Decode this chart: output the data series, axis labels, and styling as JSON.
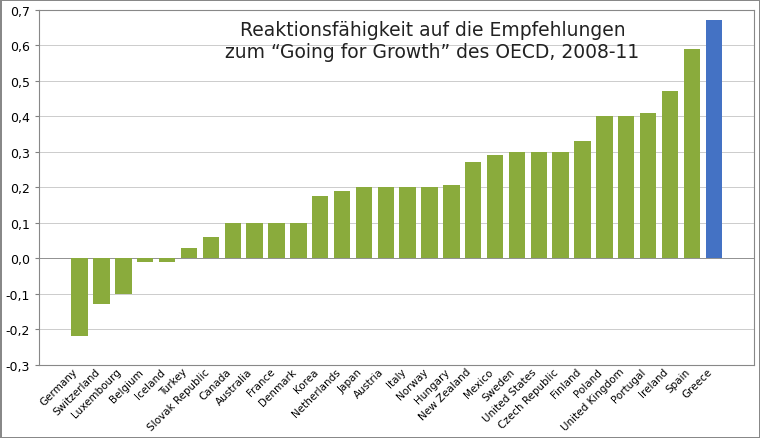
{
  "title_line1": "Reaktionsfähigkeit auf die Empfehlungen",
  "title_line2": "zum “Going for Growth” des OECD, 2008-11",
  "categories": [
    "Germany",
    "Switzerland",
    "Luxembourg",
    "Belgium",
    "Iceland",
    "Turkey",
    "Slovak Republic",
    "Canada",
    "Australia",
    "France",
    "Denmark",
    "Korea",
    "Netherlands",
    "Japan",
    "Austria",
    "Italy",
    "Norway",
    "Hungary",
    "New Zealand",
    "Mexico",
    "Sweden",
    "United States",
    "Czech Republic",
    "Finland",
    "Poland",
    "United Kingdom",
    "Portugal",
    "Ireland",
    "Spain",
    "Greece"
  ],
  "values": [
    -0.22,
    -0.13,
    -0.1,
    -0.01,
    -0.01,
    0.03,
    0.06,
    0.1,
    0.1,
    0.1,
    0.1,
    0.175,
    0.19,
    0.2,
    0.2,
    0.2,
    0.2,
    0.205,
    0.27,
    0.29,
    0.3,
    0.3,
    0.3,
    0.33,
    0.4,
    0.4,
    0.41,
    0.47,
    0.59,
    0.67
  ],
  "bar_color_default": "#8aab3c",
  "bar_color_highlight": "#4472c4",
  "highlight_index": 29,
  "ylim": [
    -0.3,
    0.7
  ],
  "yticks": [
    -0.3,
    -0.2,
    -0.1,
    0.0,
    0.1,
    0.2,
    0.3,
    0.4,
    0.5,
    0.6,
    0.7
  ],
  "ytick_labels": [
    "-0,3",
    "-0,2",
    "-0,1",
    "0,0",
    "0,1",
    "0,2",
    "0,3",
    "0,4",
    "0,5",
    "0,6",
    "0,7"
  ],
  "background_color": "#ffffff",
  "plot_bg_color": "#ffffff",
  "title_fontsize": 13.5,
  "tick_fontsize": 9,
  "label_fontsize": 7.5,
  "border_color": "#888888"
}
